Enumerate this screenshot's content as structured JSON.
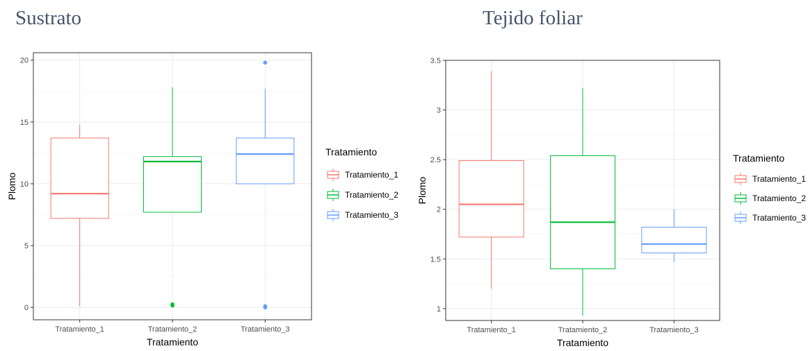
{
  "chart_data": [
    {
      "type": "box",
      "title": "Sustrato",
      "xlabel": "Tratamiento",
      "ylabel": "Plomo",
      "categories": [
        "Tratamiento_1",
        "Tratamiento_2",
        "Tratamiento_3"
      ],
      "ylim": [
        -1,
        20.6
      ],
      "yticks": [
        0,
        5,
        10,
        15,
        20
      ],
      "grid": true,
      "legend": {
        "title": "Tratamiento",
        "position": "right",
        "labels": [
          "Tratamiento_1",
          "Tratamiento_2",
          "Tratamiento_3"
        ]
      },
      "boxes": [
        {
          "name": "Tratamiento_1",
          "color": "#f8766d",
          "whisker_low": 0.1,
          "q1": 7.2,
          "median": 9.2,
          "q3": 13.7,
          "whisker_high": 14.8,
          "outliers": []
        },
        {
          "name": "Tratamiento_2",
          "color": "#00ba38",
          "whisker_low": 7.7,
          "q1": 7.7,
          "median": 11.8,
          "q3": 12.2,
          "whisker_high": 17.8,
          "outliers": [
            0.15,
            0.25
          ]
        },
        {
          "name": "Tratamiento_3",
          "color": "#619cff",
          "whisker_low": 10.0,
          "q1": 10.0,
          "median": 12.4,
          "q3": 13.7,
          "whisker_high": 17.7,
          "outliers": [
            19.8,
            0.0,
            0.1
          ]
        }
      ]
    },
    {
      "type": "box",
      "title": "Tejido foliar",
      "xlabel": "Tratamiento",
      "ylabel": "Plomo",
      "categories": [
        "Tratamiento_1",
        "Tratamiento_2",
        "Tratamiento_3"
      ],
      "ylim": [
        0.88,
        3.5
      ],
      "yticks": [
        1.0,
        1.5,
        2.0,
        2.5,
        3.0,
        3.5
      ],
      "grid": true,
      "legend": {
        "title": "Tratamiento",
        "position": "right",
        "labels": [
          "Tratamiento_1",
          "Tratamiento_2",
          "Tratamiento_3"
        ]
      },
      "boxes": [
        {
          "name": "Tratamiento_1",
          "color": "#f8766d",
          "whisker_low": 1.2,
          "q1": 1.72,
          "median": 2.05,
          "q3": 2.49,
          "whisker_high": 3.39,
          "outliers": []
        },
        {
          "name": "Tratamiento_2",
          "color": "#00ba38",
          "whisker_low": 0.93,
          "q1": 1.4,
          "median": 1.87,
          "q3": 2.54,
          "whisker_high": 3.22,
          "outliers": []
        },
        {
          "name": "Tratamiento_3",
          "color": "#619cff",
          "whisker_low": 1.47,
          "q1": 1.56,
          "median": 1.65,
          "q3": 1.82,
          "whisker_high": 2.0,
          "outliers": []
        }
      ]
    }
  ]
}
